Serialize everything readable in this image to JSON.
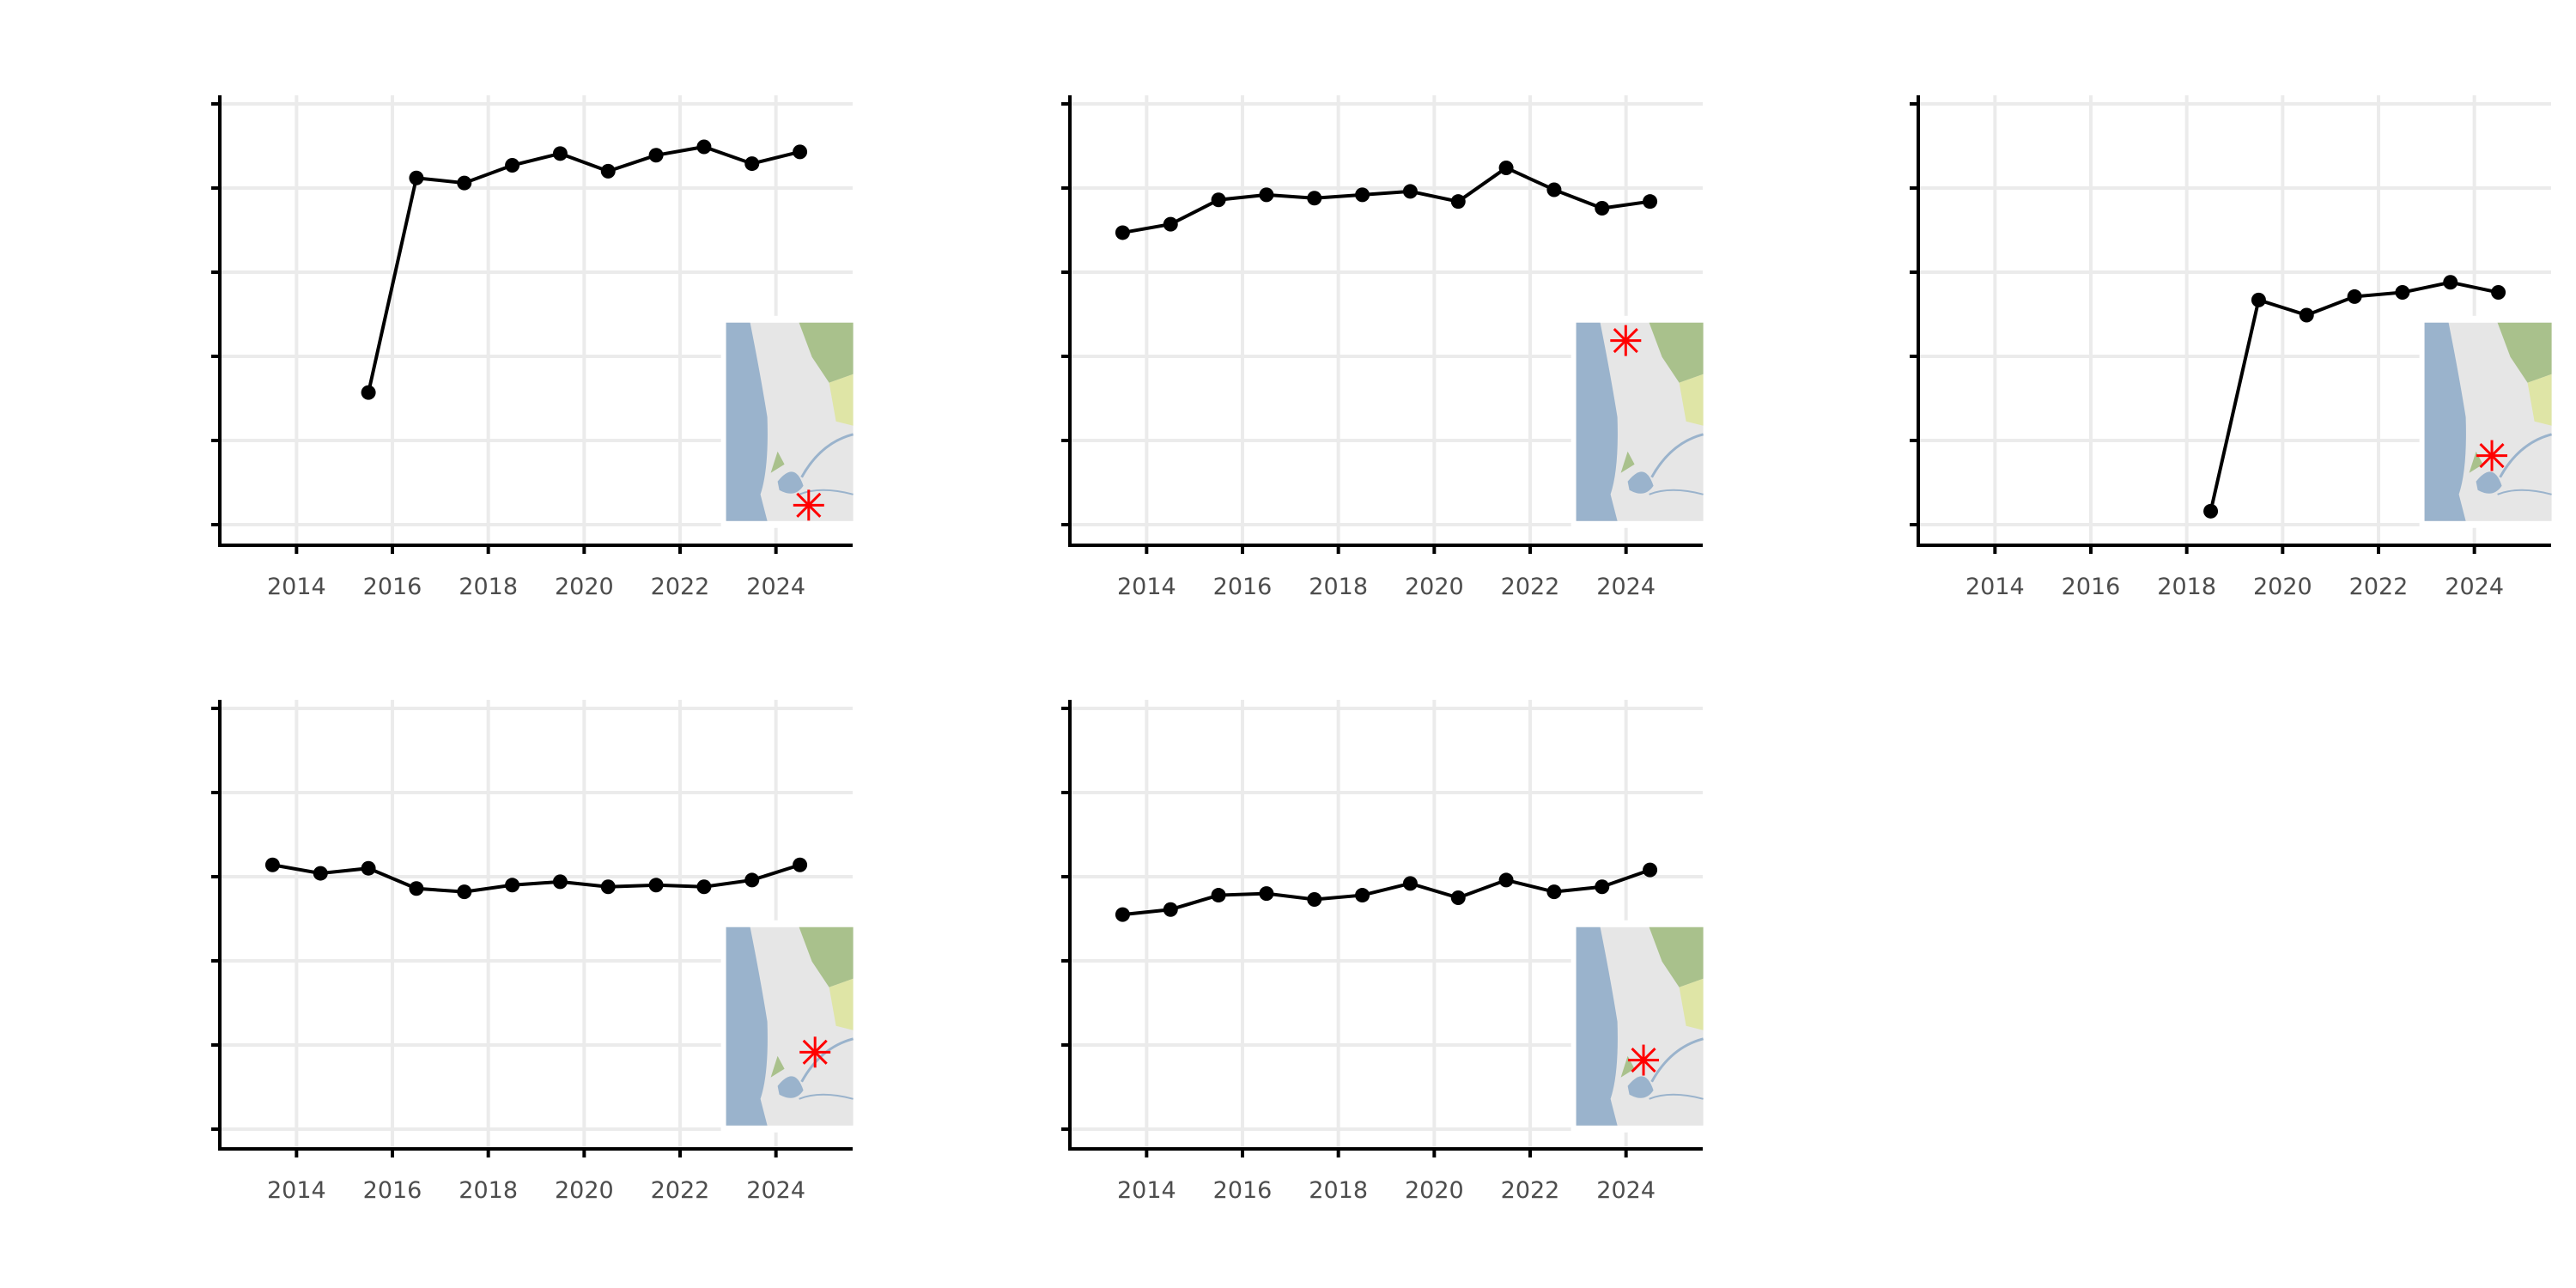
{
  "chart_data": [
    {
      "type": "line",
      "panel": 1,
      "x": [
        2015.5,
        2016.5,
        2017.5,
        2018.5,
        2019.5,
        2020.5,
        2021.5,
        2022.5,
        2023.5,
        2024.5
      ],
      "y": [
        1.57,
        4.12,
        4.06,
        4.27,
        4.41,
        4.2,
        4.39,
        4.49,
        4.29,
        4.43
      ],
      "xlim": [
        2012.4,
        2025.6
      ],
      "ylim": [
        -0.2,
        5.05
      ],
      "xticks": [
        "2014",
        "2016",
        "2018",
        "2020",
        "2022",
        "2024"
      ],
      "yticks": [
        0,
        1,
        2,
        3,
        4,
        5
      ],
      "xlabel": "",
      "ylabel": "",
      "grid": true
    },
    {
      "type": "line",
      "panel": 2,
      "x": [
        2013.5,
        2014.5,
        2015.5,
        2016.5,
        2017.5,
        2018.5,
        2019.5,
        2020.5,
        2021.5,
        2022.5,
        2023.5,
        2024.5
      ],
      "y": [
        3.47,
        3.57,
        3.86,
        3.92,
        3.88,
        3.92,
        3.96,
        3.84,
        4.24,
        3.98,
        3.76,
        3.84
      ],
      "xlim": [
        2012.4,
        2025.6
      ],
      "ylim": [
        -0.2,
        5.05
      ],
      "xticks": [
        "2014",
        "2016",
        "2018",
        "2020",
        "2022",
        "2024"
      ],
      "yticks": [
        0,
        1,
        2,
        3,
        4,
        5
      ],
      "xlabel": "",
      "ylabel": "",
      "grid": true
    },
    {
      "type": "line",
      "panel": 3,
      "x": [
        2018.5,
        2019.5,
        2020.5,
        2021.5,
        2022.5,
        2023.5,
        2024.5
      ],
      "y": [
        0.16,
        2.67,
        2.49,
        2.71,
        2.76,
        2.88,
        2.76
      ],
      "xlim": [
        2012.4,
        2025.6
      ],
      "ylim": [
        -0.2,
        5.05
      ],
      "xticks": [
        "2014",
        "2016",
        "2018",
        "2020",
        "2022",
        "2024"
      ],
      "yticks": [
        0,
        1,
        2,
        3,
        4,
        5
      ],
      "xlabel": "",
      "ylabel": "",
      "grid": true
    },
    {
      "type": "line",
      "panel": 4,
      "x": [
        2013.5,
        2014.5,
        2015.5,
        2016.5,
        2017.5,
        2018.5,
        2019.5,
        2020.5,
        2021.5,
        2022.5,
        2023.5,
        2024.5
      ],
      "y": [
        3.14,
        3.04,
        3.1,
        2.86,
        2.82,
        2.9,
        2.94,
        2.88,
        2.9,
        2.88,
        2.96,
        3.14
      ],
      "xlim": [
        2012.4,
        2025.6
      ],
      "ylim": [
        -0.2,
        5.05
      ],
      "xticks": [
        "2014",
        "2016",
        "2018",
        "2020",
        "2022",
        "2024"
      ],
      "yticks": [
        0,
        1,
        2,
        3,
        4,
        5
      ],
      "xlabel": "",
      "ylabel": "",
      "grid": true
    },
    {
      "type": "line",
      "panel": 5,
      "x": [
        2013.5,
        2014.5,
        2015.5,
        2016.5,
        2017.5,
        2018.5,
        2019.5,
        2020.5,
        2021.5,
        2022.5,
        2023.5,
        2024.5
      ],
      "y": [
        2.55,
        2.61,
        2.78,
        2.8,
        2.73,
        2.78,
        2.92,
        2.75,
        2.96,
        2.82,
        2.88,
        3.08
      ],
      "xlim": [
        2012.4,
        2025.6
      ],
      "ylim": [
        -0.2,
        5.05
      ],
      "xticks": [
        "2014",
        "2016",
        "2018",
        "2020",
        "2022",
        "2024"
      ],
      "yticks": [
        0,
        1,
        2,
        3,
        4,
        5
      ],
      "xlabel": "",
      "ylabel": "",
      "grid": true
    }
  ],
  "colors": {
    "line": "#000000",
    "grid": "#ebebeb",
    "marker_star": "#ff0000",
    "sea": "#9ab3cc",
    "land": "#e6e6e6",
    "forest": "#a9c18c",
    "scrub": "#dfe5a6"
  }
}
